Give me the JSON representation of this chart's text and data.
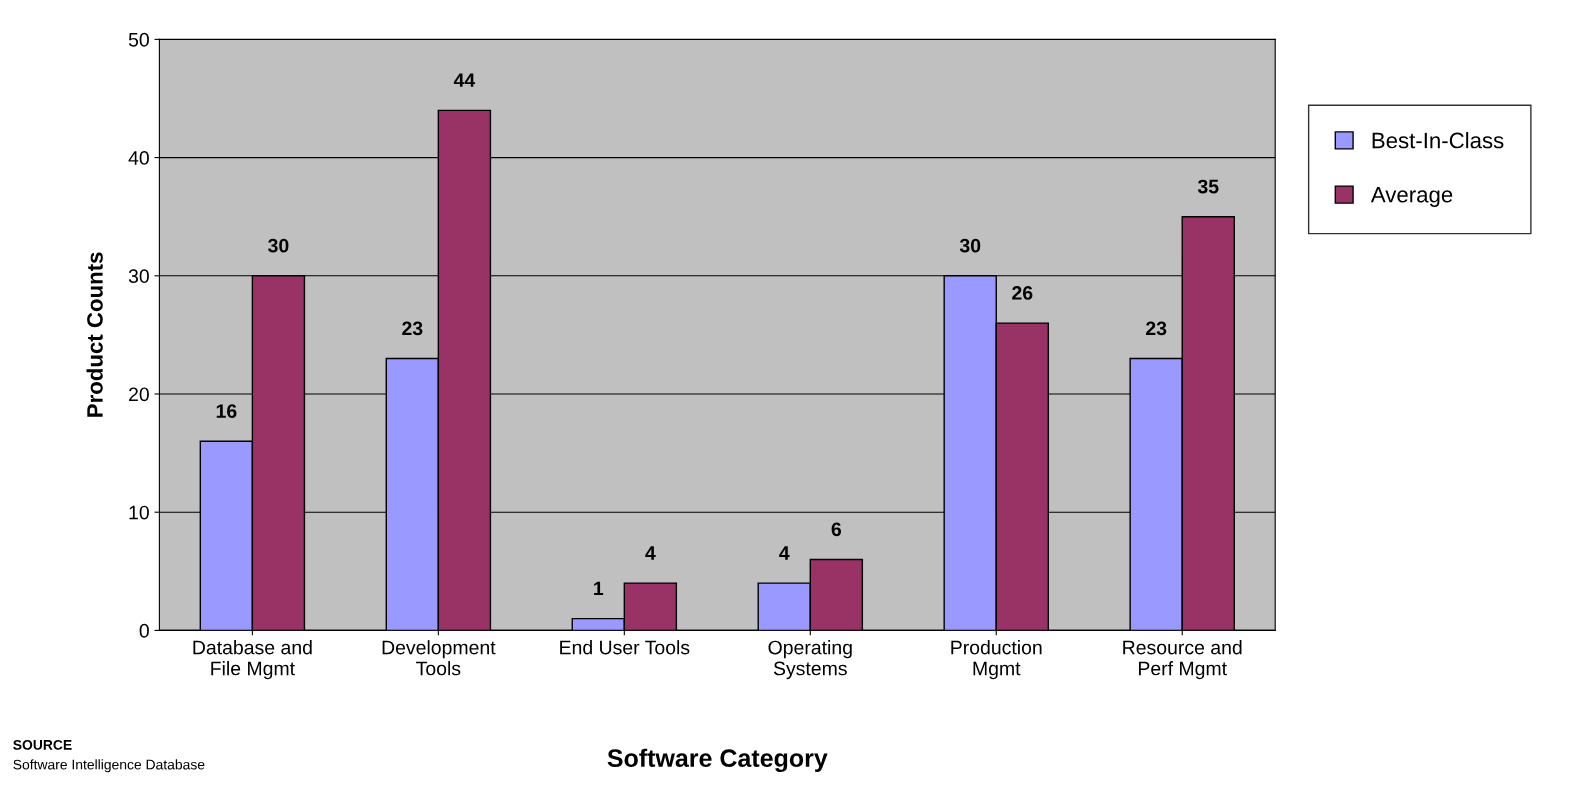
{
  "chart_data": {
    "type": "bar",
    "xlabel": "Software Category",
    "ylabel": "Product Counts",
    "categories": [
      "Database and\nFile Mgmt",
      "Development\nTools",
      "End User Tools",
      "Operating\nSystems",
      "Production\nMgmt",
      "Resource and\nPerf Mgmt"
    ],
    "series": [
      {
        "name": "Best-In-Class",
        "color": "#9999ff",
        "values": [
          16,
          23,
          1,
          4,
          30,
          23
        ]
      },
      {
        "name": "Average",
        "color": "#993366",
        "values": [
          30,
          44,
          4,
          6,
          26,
          35
        ]
      }
    ],
    "ylim": [
      0,
      50
    ],
    "yticks": [
      0,
      10,
      20,
      30,
      40,
      50
    ],
    "grid": "y",
    "legend": "right",
    "data_labels": true,
    "annotations": [
      "SOURCE",
      "Software Intelligence Database"
    ]
  }
}
